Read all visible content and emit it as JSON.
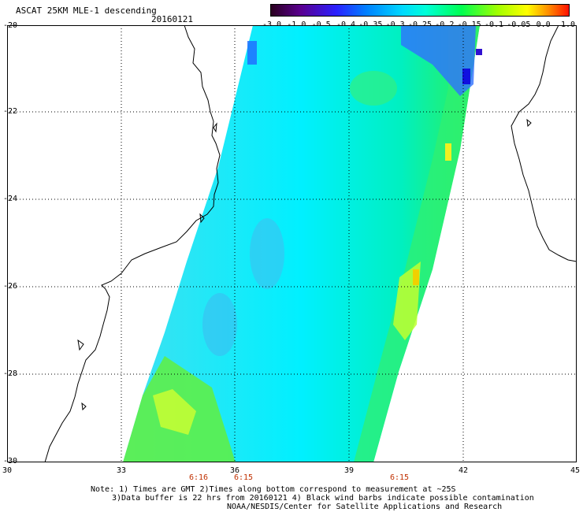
{
  "title": "ASCAT 25KM MLE-1 descending",
  "date": "20160121",
  "colorbar": {
    "labels": [
      "-3.0",
      "-1.0",
      "-0.5",
      "-0.4",
      "-0.35",
      "-0.3",
      "-0.25",
      "-0.2",
      "-0.15",
      "-0.1",
      "-0.05",
      "0.0",
      "1.0"
    ]
  },
  "axes": {
    "lat_labels": [
      "-20",
      "-22",
      "-24",
      "-26",
      "-28",
      "-30"
    ],
    "lon_labels": [
      "30",
      "33",
      "36",
      "39",
      "42",
      "45"
    ]
  },
  "times": [
    "6:16",
    "6:15",
    "6:15"
  ],
  "notes": [
    "Note: 1) Times are GMT 2)Times along bottom correspond to measurement at ~25S",
    "3)Data buffer is 22 hrs from 20160121 4) Black wind barbs indicate possible contamination",
    "NOAA/NESDIS/Center for Satellite Applications and Research"
  ],
  "colors": {
    "coast": "#000000",
    "grid": "#000000",
    "time_labels": "#c03000"
  }
}
